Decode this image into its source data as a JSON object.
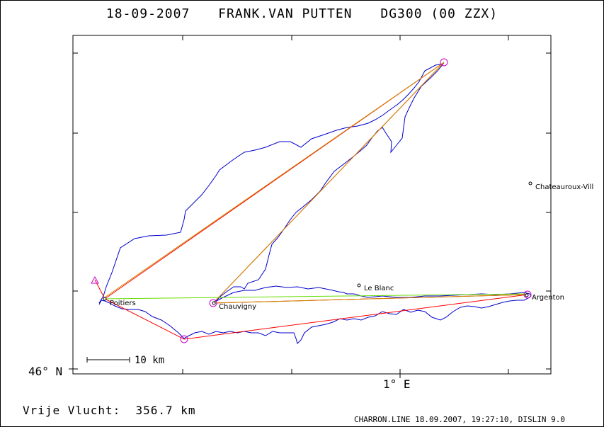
{
  "header": {
    "date": "18-09-2007",
    "pilot": "FRANK.VAN PUTTEN",
    "glider": "DG300 (00 ZZX)"
  },
  "axes": {
    "lat_label": "46° N",
    "lon_label": "1° E"
  },
  "scale_bar": {
    "label": "10 km"
  },
  "distance": {
    "label": "Vrije Vlucht:",
    "value": "356.7 km"
  },
  "footer": "CHARRON.LINE 18.09.2007, 19:27:10, DISLIN 9.0",
  "places": [
    {
      "name": "Poitiers"
    },
    {
      "name": "Chauvigny"
    },
    {
      "name": "Le Blanc"
    },
    {
      "name": "Argenton"
    },
    {
      "name": "Chateauroux-Vill"
    }
  ],
  "colors": {
    "track": "#0000cc",
    "task_line": "#ff0000",
    "optimized_line": "#cc8800",
    "closing_line": "#66dd00",
    "turnpoint": "#cc00cc",
    "frame": "#000000"
  }
}
